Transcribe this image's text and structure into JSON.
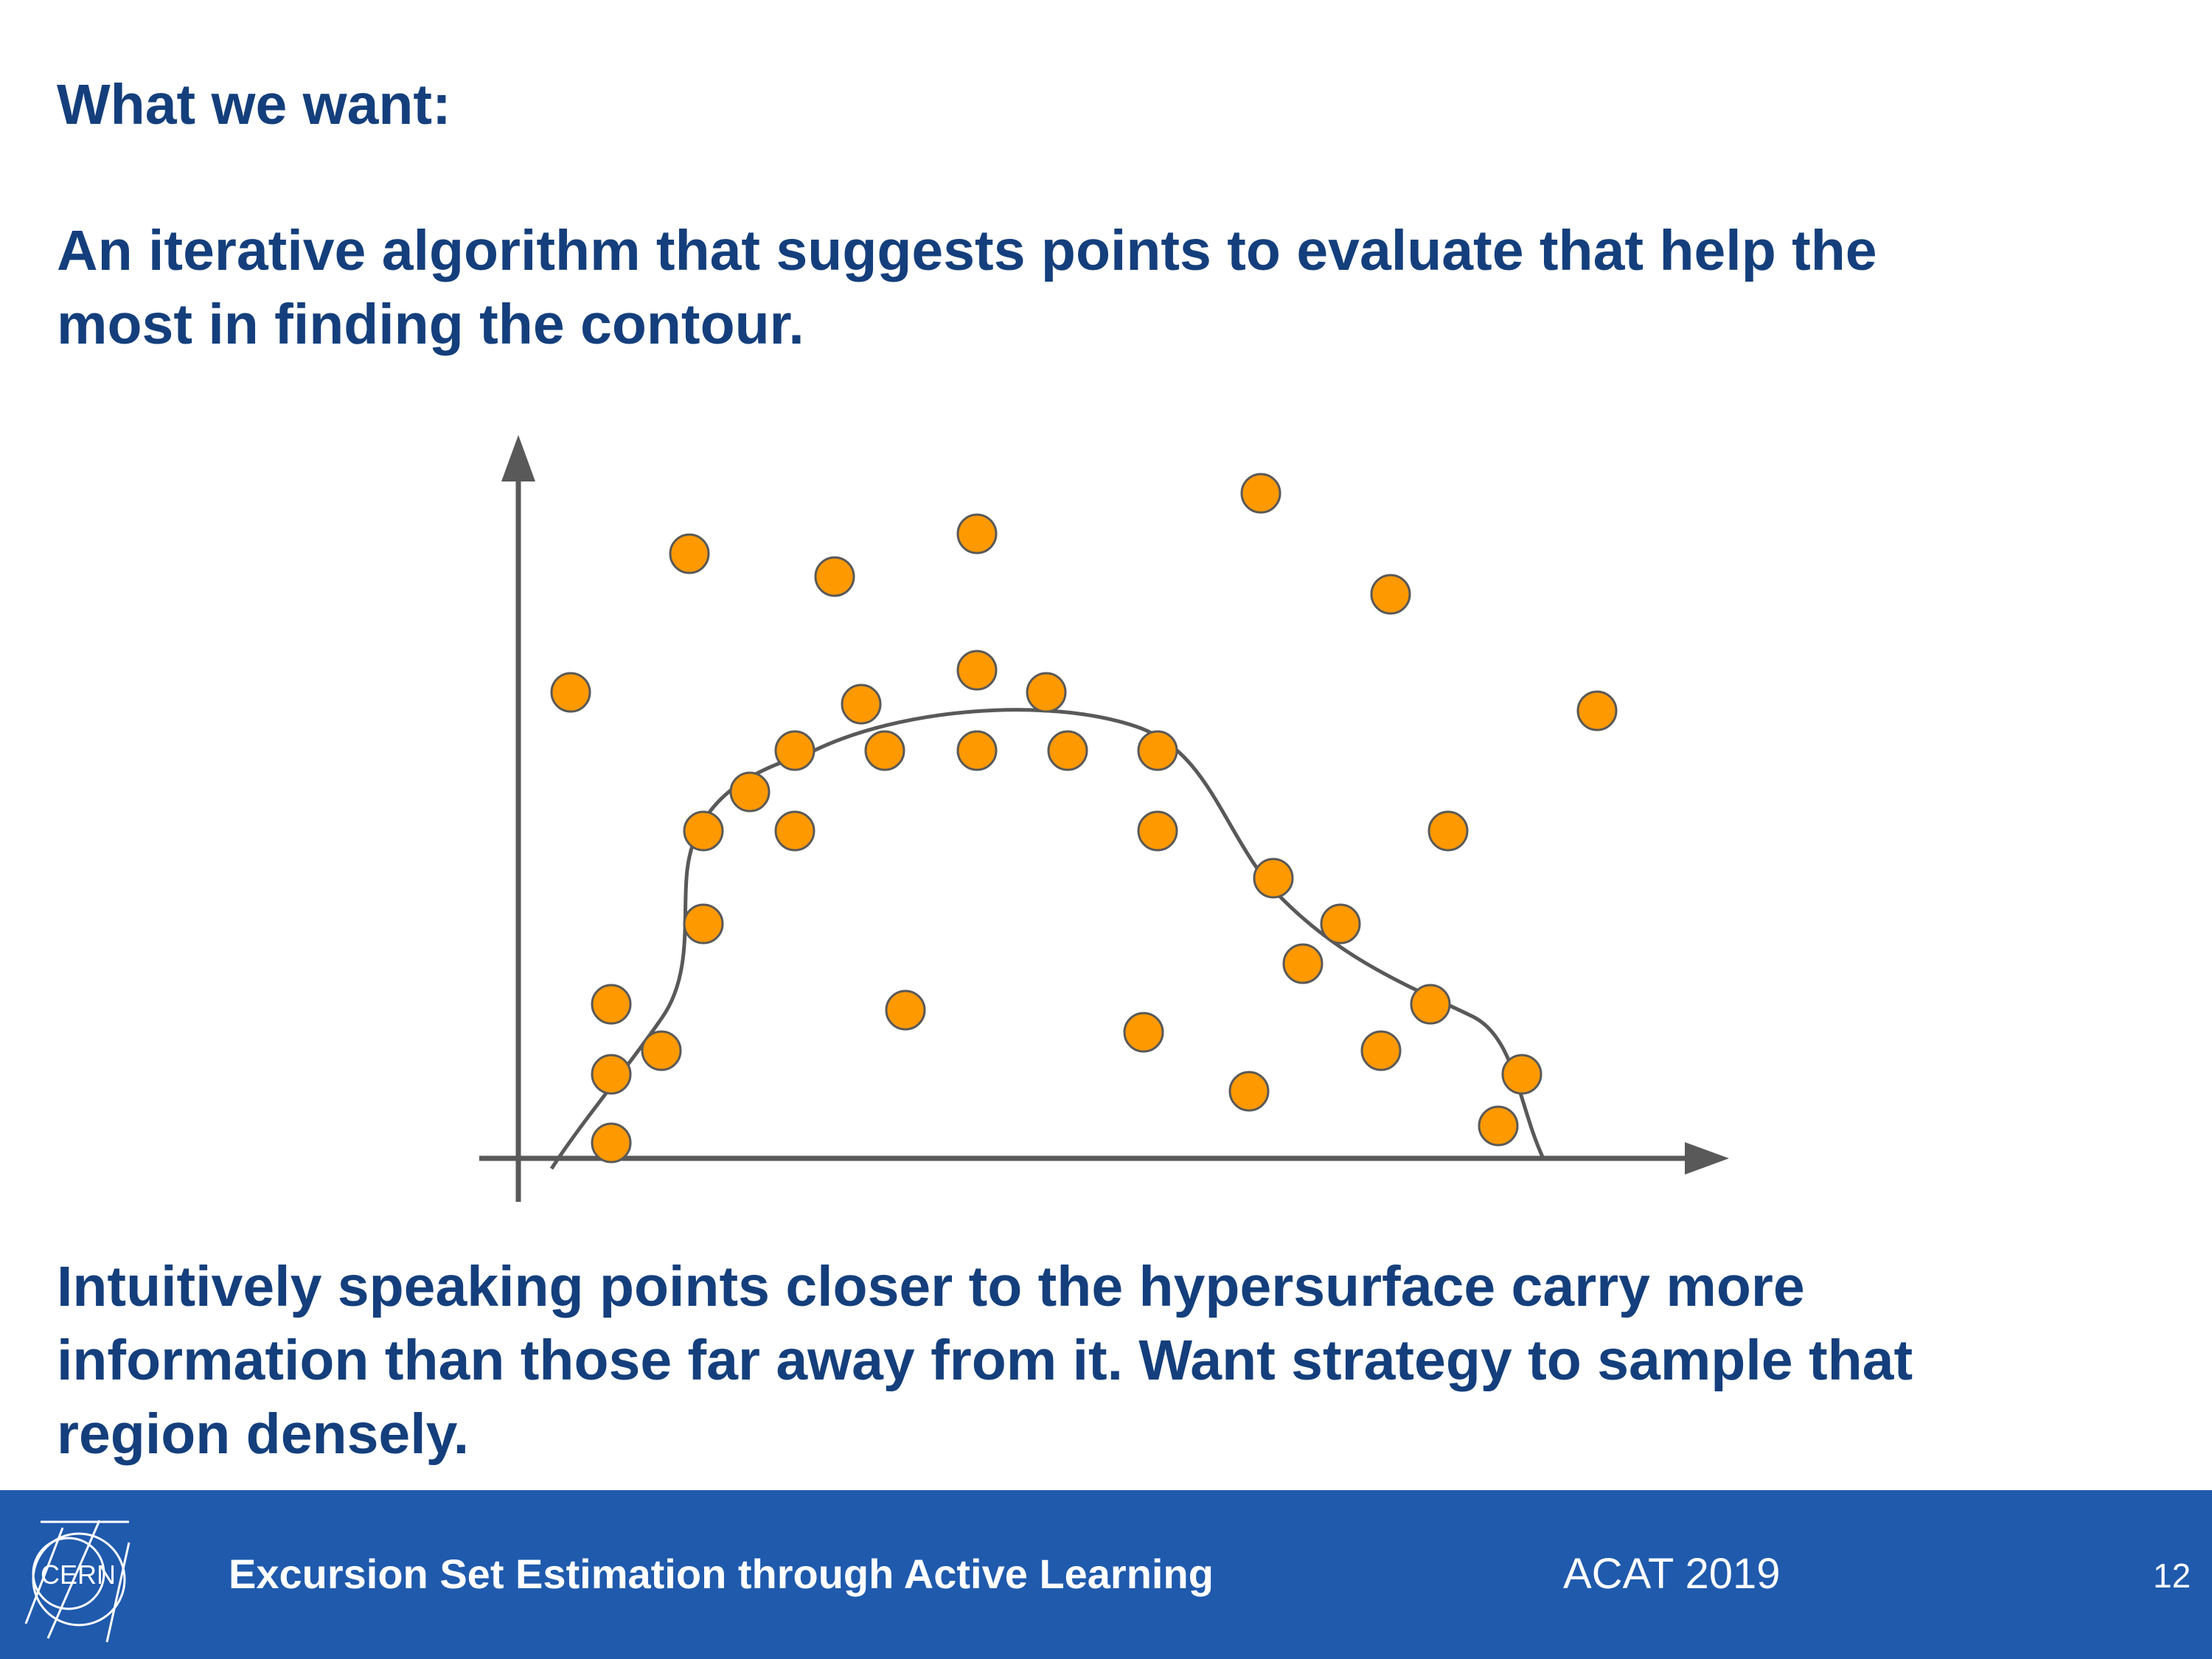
{
  "slide": {
    "heading": "What we want:",
    "intro_line_1": "An iterative algorithm that suggests points to evaluate that help the",
    "intro_line_2": "most in finding the contour.",
    "conclusion_line_1": "Intuitively speaking points closer to the hypersurface carry more",
    "conclusion_line_2": "information than those far away from it. Want strategy to sample that",
    "conclusion_line_3": "region densely."
  },
  "footer": {
    "title": "Excursion Set Estimation through Active Learning",
    "event": "ACAT 2019",
    "page_number": "12",
    "logo_text": "CERN"
  },
  "colors": {
    "text": "#143f7c",
    "footer_background": "#1f5aad",
    "sample_point": "#ff9900",
    "axis_and_contour": "#595959"
  },
  "icons": {
    "logo": "cern-logo-icon",
    "axis_arrows": "arrow-head-icon"
  }
}
